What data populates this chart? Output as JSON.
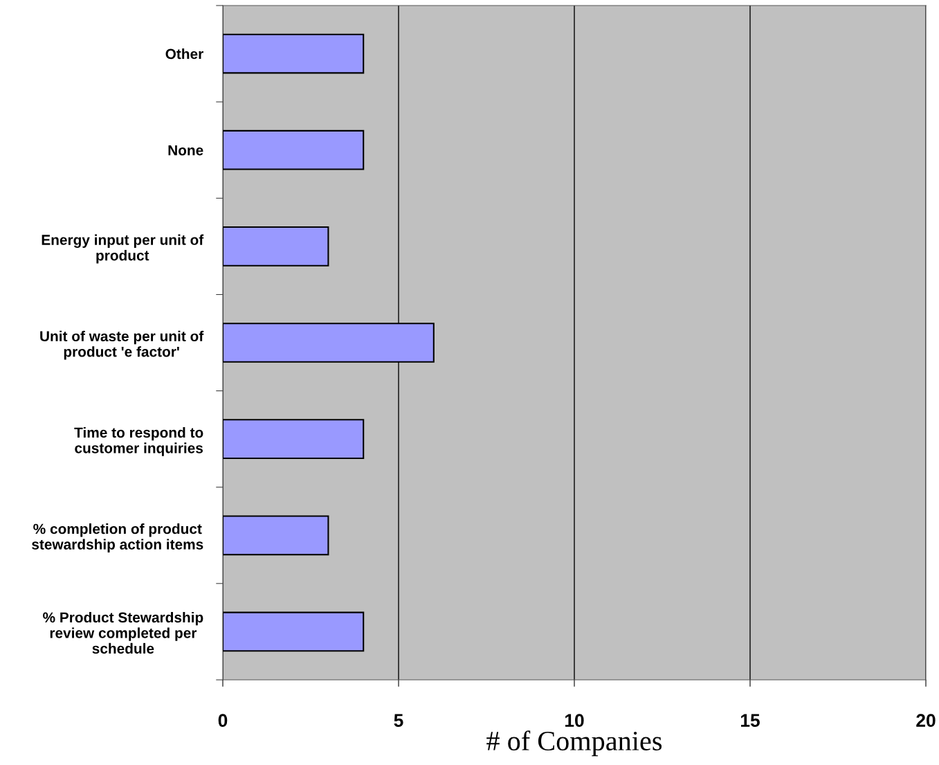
{
  "chart_data": {
    "type": "bar",
    "orientation": "horizontal",
    "categories": [
      "Other",
      "None",
      "Energy input per unit of\nproduct",
      "Unit of waste per unit of\nproduct 'e factor'",
      "Time to respond to\ncustomer inquiries",
      "% completion of product\nstewardship action items",
      "% Product Stewardship\nreview completed per\nschedule"
    ],
    "values": [
      4,
      4,
      3,
      6,
      4,
      3,
      4
    ],
    "color": "#9999ff",
    "xlim": [
      0,
      20
    ],
    "xticks": [
      0,
      5,
      10,
      15,
      20
    ],
    "xlabel": "# of Companies",
    "grid": "x"
  }
}
